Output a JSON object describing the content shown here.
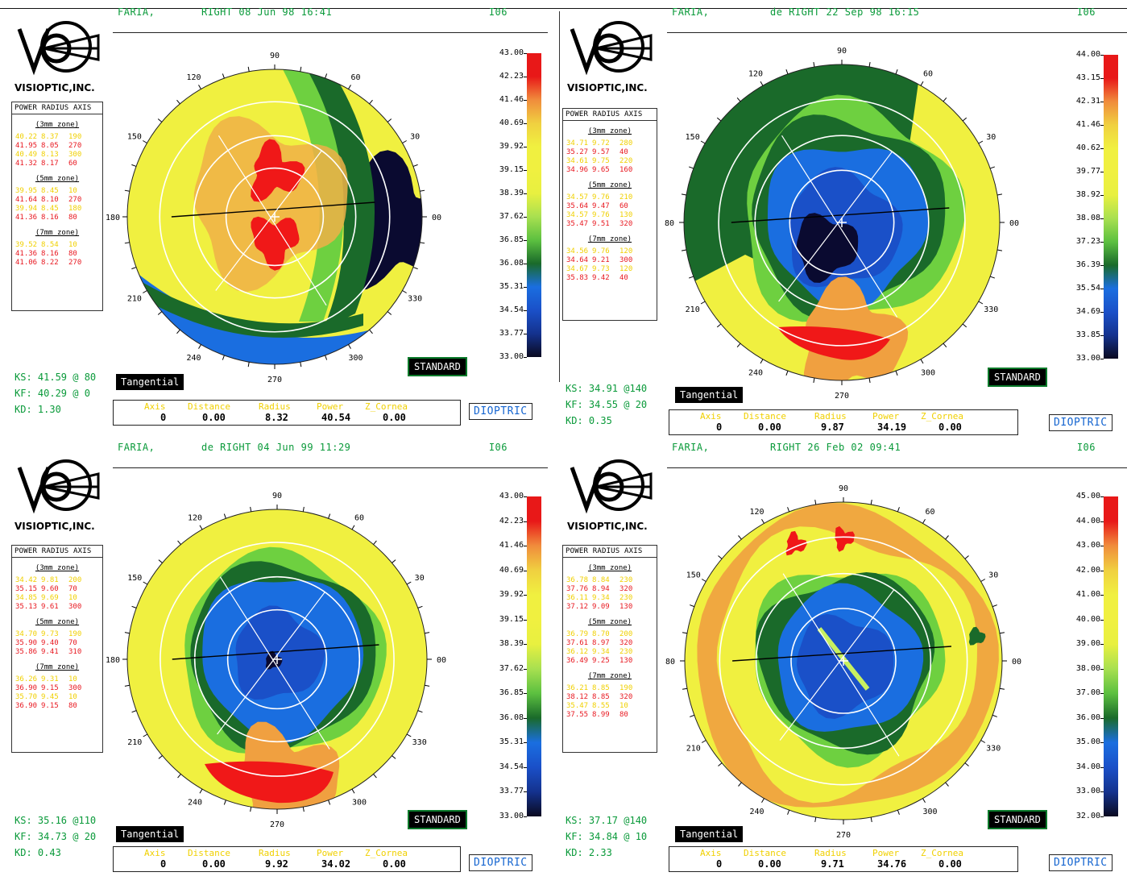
{
  "header_scale_labels": [
    "I06"
  ],
  "panels": [
    {
      "id": "p1",
      "patient": "FARIA,",
      "eye_date": "RIGHT 08 Jun 98 16:41",
      "code": "I06",
      "brand": "VISIOPTIC,INC.",
      "pr_title": "POWER RADIUS AXIS",
      "zones": [
        {
          "label": "(3mm zone)",
          "rows": [
            [
              "40.22",
              "8.37",
              "190",
              "yel"
            ],
            [
              "41.95",
              "8.05",
              "270",
              "red"
            ],
            [
              "40.49",
              "8.13",
              "300",
              "yel"
            ],
            [
              "41.32",
              "8.17",
              "60",
              "red"
            ]
          ]
        },
        {
          "label": "(5mm zone)",
          "rows": [
            [
              "39.95",
              "8.45",
              "10",
              "yel"
            ],
            [
              "41.64",
              "8.10",
              "270",
              "red"
            ],
            [
              "39.94",
              "8.45",
              "180",
              "yel"
            ],
            [
              "41.36",
              "8.16",
              "80",
              "red"
            ]
          ]
        },
        {
          "label": "(7mm zone)",
          "rows": [
            [
              "39.52",
              "8.54",
              "10",
              "yel"
            ],
            [
              "41.36",
              "8.16",
              "80",
              "red"
            ],
            [
              "41.06",
              "8.22",
              "270",
              "red"
            ]
          ]
        }
      ],
      "ks": "KS: 41.59 @ 80",
      "kf": "KF: 40.29 @  0",
      "kd": "KD: 1.30",
      "mode": "Tangential",
      "standard": "STANDARD",
      "dioptric": "DIOPTRIC",
      "info_labels": [
        "Axis",
        "Distance",
        "Radius",
        "Power",
        "Z_Cornea"
      ],
      "info_values": [
        "0",
        "0.00",
        "8.32",
        "40.54",
        "0.00"
      ],
      "scale": [
        "43.00",
        "42.23",
        "41.46",
        "40.69",
        "39.92",
        "39.15",
        "38.39",
        "37.62",
        "36.85",
        "36.08",
        "35.31",
        "34.54",
        "33.77",
        "33.00"
      ],
      "angles": [
        "90",
        "60",
        "30",
        "00",
        "330",
        "300",
        "270",
        "240",
        "210",
        "180",
        "150",
        "120"
      ]
    },
    {
      "id": "p2",
      "patient": "FARIA,",
      "eye_date": "de RIGHT 22 Sep 98 16:15",
      "code": "I06",
      "brand": "VISIOPTIC,INC.",
      "pr_title": "POWER RADIUS AXIS",
      "zones": [
        {
          "label": "(3mm zone)",
          "rows": [
            [
              "34.71",
              "9.72",
              "280",
              "yel"
            ],
            [
              "35.27",
              "9.57",
              "40",
              "red"
            ],
            [
              "34.61",
              "9.75",
              "220",
              "yel"
            ],
            [
              "34.96",
              "9.65",
              "160",
              "red"
            ]
          ]
        },
        {
          "label": "(5mm zone)",
          "rows": [
            [
              "34.57",
              "9.76",
              "210",
              "yel"
            ],
            [
              "35.64",
              "9.47",
              "60",
              "red"
            ],
            [
              "34.57",
              "9.76",
              "130",
              "yel"
            ],
            [
              "35.47",
              "9.51",
              "320",
              "red"
            ]
          ]
        },
        {
          "label": "(7mm zone)",
          "rows": [
            [
              "34.56",
              "9.76",
              "120",
              "yel"
            ],
            [
              "34.64",
              "9.21",
              "300",
              "red"
            ],
            [
              "34.67",
              "9.73",
              "120",
              "yel"
            ],
            [
              "35.83",
              "9.42",
              "40",
              "red"
            ]
          ]
        }
      ],
      "ks": "KS: 34.91 @140",
      "kf": "KF: 34.55 @ 20",
      "kd": "KD: 0.35",
      "mode": "Tangential",
      "standard": "STANDARD",
      "dioptric": "DIOPTRIC",
      "info_labels": [
        "Axis",
        "Distance",
        "Radius",
        "Power",
        "Z_Cornea"
      ],
      "info_values": [
        "0",
        "0.00",
        "9.87",
        "34.19",
        "0.00"
      ],
      "scale": [
        "44.00",
        "43.15",
        "42.31",
        "41.46",
        "40.62",
        "39.77",
        "38.92",
        "38.08",
        "37.23",
        "36.39",
        "35.54",
        "34.69",
        "33.85",
        "33.00"
      ],
      "angles": [
        "90",
        "60",
        "30",
        "00",
        "330",
        "300",
        "270",
        "240",
        "210",
        "80",
        "150",
        "120"
      ]
    },
    {
      "id": "p3",
      "patient": "FARIA,",
      "eye_date": "de RIGHT 04 Jun 99 11:29",
      "code": "I06",
      "brand": "VISIOPTIC,INC.",
      "pr_title": "POWER RADIUS AXIS",
      "zones": [
        {
          "label": "(3mm zone)",
          "rows": [
            [
              "34.42",
              "9.81",
              "200",
              "yel"
            ],
            [
              "35.15",
              "9.60",
              "70",
              "red"
            ],
            [
              "34.85",
              "9.69",
              "10",
              "yel"
            ],
            [
              "35.13",
              "9.61",
              "300",
              "red"
            ]
          ]
        },
        {
          "label": "(5mm zone)",
          "rows": [
            [
              "34.70",
              "9.73",
              "190",
              "yel"
            ],
            [
              "35.90",
              "9.40",
              "70",
              "red"
            ],
            [
              "35.86",
              "9.41",
              "310",
              "red"
            ]
          ]
        },
        {
          "label": "(7mm zone)",
          "rows": [
            [
              "36.26",
              "9.31",
              "10",
              "yel"
            ],
            [
              "36.90",
              "9.15",
              "300",
              "red"
            ],
            [
              "35.70",
              "9.45",
              "10",
              "yel"
            ],
            [
              "36.90",
              "9.15",
              "80",
              "red"
            ]
          ]
        }
      ],
      "ks": "KS: 35.16 @110",
      "kf": "KF: 34.73 @ 20",
      "kd": "KD: 0.43",
      "mode": "Tangential",
      "standard": "STANDARD",
      "dioptric": "DIOPTRIC",
      "info_labels": [
        "Axis",
        "Distance",
        "Radius",
        "Power",
        "Z_Cornea"
      ],
      "info_values": [
        "0",
        "0.00",
        "9.92",
        "34.02",
        "0.00"
      ],
      "scale": [
        "43.00",
        "42.23",
        "41.46",
        "40.69",
        "39.92",
        "39.15",
        "38.39",
        "37.62",
        "36.85",
        "36.08",
        "35.31",
        "34.54",
        "33.77",
        "33.00"
      ],
      "angles": [
        "90",
        "60",
        "30",
        "00",
        "330",
        "300",
        "270",
        "240",
        "210",
        "180",
        "150",
        "120"
      ]
    },
    {
      "id": "p4",
      "patient": "FARIA,",
      "eye_date": "RIGHT 26 Feb 02 09:41",
      "code": "I06",
      "brand": "VISIOPTIC,INC.",
      "pr_title": "POWER RADIUS AXIS",
      "zones": [
        {
          "label": "(3mm zone)",
          "rows": [
            [
              "36.78",
              "8.84",
              "230",
              "yel"
            ],
            [
              "37.76",
              "8.94",
              "320",
              "red"
            ],
            [
              "36.11",
              "9.34",
              "230",
              "yel"
            ],
            [
              "37.12",
              "9.09",
              "130",
              "red"
            ]
          ]
        },
        {
          "label": "(5mm zone)",
          "rows": [
            [
              "36.79",
              "8.70",
              "200",
              "yel"
            ],
            [
              "37.61",
              "8.97",
              "320",
              "red"
            ],
            [
              "36.12",
              "9.34",
              "230",
              "yel"
            ],
            [
              "36.49",
              "9.25",
              "130",
              "red"
            ]
          ]
        },
        {
          "label": "(7mm zone)",
          "rows": [
            [
              "36.21",
              "8.85",
              "190",
              "yel"
            ],
            [
              "38.12",
              "8.85",
              "320",
              "red"
            ],
            [
              "35.47",
              "8.55",
              "10",
              "yel"
            ],
            [
              "37.55",
              "8.99",
              "80",
              "red"
            ]
          ]
        }
      ],
      "ks": "KS: 37.17 @140",
      "kf": "KF: 34.84 @ 10",
      "kd": "KD: 2.33",
      "mode": "Tangential",
      "standard": "STANDARD",
      "dioptric": "DIOPTRIC",
      "info_labels": [
        "Axis",
        "Distance",
        "Radius",
        "Power",
        "Z_Cornea"
      ],
      "info_values": [
        "0",
        "0.00",
        "9.71",
        "34.76",
        "0.00"
      ],
      "scale": [
        "45.00",
        "44.00",
        "43.00",
        "42.00",
        "41.00",
        "40.00",
        "39.00",
        "38.00",
        "37.00",
        "36.00",
        "35.00",
        "34.00",
        "33.00",
        "32.00"
      ],
      "angles": [
        "90",
        "60",
        "30",
        "00",
        "330",
        "300",
        "270",
        "240",
        "210",
        "80",
        "150",
        "120"
      ]
    }
  ],
  "colors": {
    "red": "#f01818",
    "orange": "#f0a040",
    "yellow": "#f0f038",
    "lightgreen": "#6ed040",
    "darkgreen": "#1a6a2a",
    "blue": "#1a6ee0",
    "darkblue": "#1030a0",
    "navy": "#0a0a30",
    "text_green": "#0a9a3a"
  }
}
